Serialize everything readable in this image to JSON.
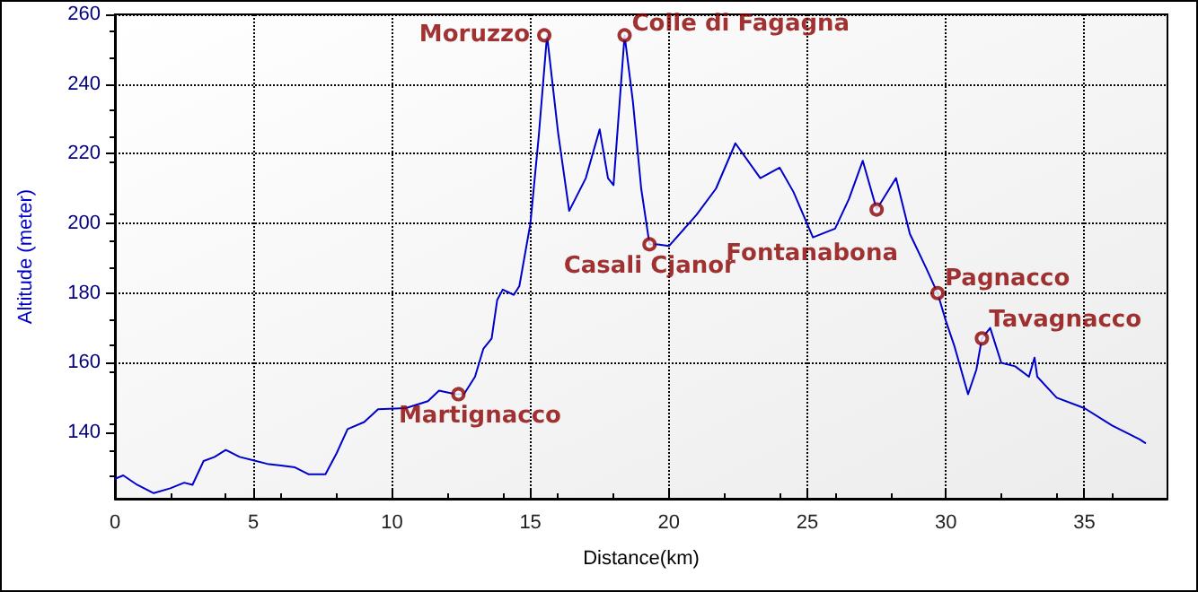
{
  "chart_data": {
    "type": "line",
    "xlabel": "Distance(km)",
    "ylabel": "Altitude (meter)",
    "xlim": [
      0,
      38
    ],
    "xticks": [
      0,
      5,
      10,
      15,
      20,
      25,
      30,
      35
    ],
    "ylim": [
      121,
      260
    ],
    "yticks": [
      140,
      160,
      180,
      200,
      220,
      240,
      260
    ],
    "grid": true,
    "marker": "none",
    "line_style": "solid",
    "series": [
      {
        "color": "#0000cc",
        "x": [
          0,
          0.3,
          0.8,
          1.4,
          2,
          2.5,
          2.8,
          3.2,
          3.6,
          4,
          4.5,
          5,
          5.5,
          6,
          6.5,
          7,
          7.6,
          8,
          8.4,
          9,
          9.5,
          10.5,
          11.3,
          11.7,
          12.3,
          12.6,
          13,
          13.3,
          13.6,
          13.8,
          14,
          14.4,
          14.6,
          15,
          15.3,
          15.6,
          16,
          16.4,
          17,
          17.5,
          17.8,
          18,
          18.4,
          18.7,
          19,
          19.3,
          19.6,
          20,
          21,
          21.7,
          22.4,
          23.3,
          24,
          24.5,
          25.2,
          26,
          26.5,
          27,
          27.5,
          28.2,
          28.7,
          29.3,
          29.7,
          30,
          30.3,
          30.8,
          31.1,
          31.3,
          31.6,
          32,
          32.5,
          33,
          33.2,
          33.3,
          34,
          35,
          36,
          37,
          37.2
        ],
        "values": [
          126.7,
          127.7,
          125,
          122.6,
          124,
          125.6,
          125,
          131.8,
          133,
          135,
          133,
          132,
          131,
          130.5,
          130,
          128,
          128,
          134,
          141,
          143,
          146.7,
          147,
          149,
          152,
          151,
          151,
          156,
          164,
          167,
          178,
          181,
          179.5,
          182,
          200,
          225,
          254,
          226,
          203.6,
          213,
          227,
          213,
          211,
          254,
          235,
          210,
          194,
          194,
          193.5,
          202.5,
          210,
          223,
          213,
          216,
          209,
          196,
          198.5,
          207,
          218,
          204,
          213,
          197,
          187,
          180,
          172,
          165,
          151,
          158,
          167,
          170,
          160,
          159,
          156,
          161.5,
          156,
          150,
          147,
          142,
          138,
          137
        ]
      }
    ],
    "annotations": [
      {
        "text": "Moruzzo",
        "x": 15.5,
        "y": 254
      },
      {
        "text": "Colle di Fagagna",
        "x": 18.4,
        "y": 254
      },
      {
        "text": "Casali Cjanor",
        "x": 19.3,
        "y": 194
      },
      {
        "text": "Fontanabona",
        "x": 27.5,
        "y": 204
      },
      {
        "text": "Pagnacco",
        "x": 29.7,
        "y": 180
      },
      {
        "text": "Tavagnacco",
        "x": 31.3,
        "y": 167
      },
      {
        "text": "Martignacco",
        "x": 12.4,
        "y": 151
      }
    ]
  }
}
